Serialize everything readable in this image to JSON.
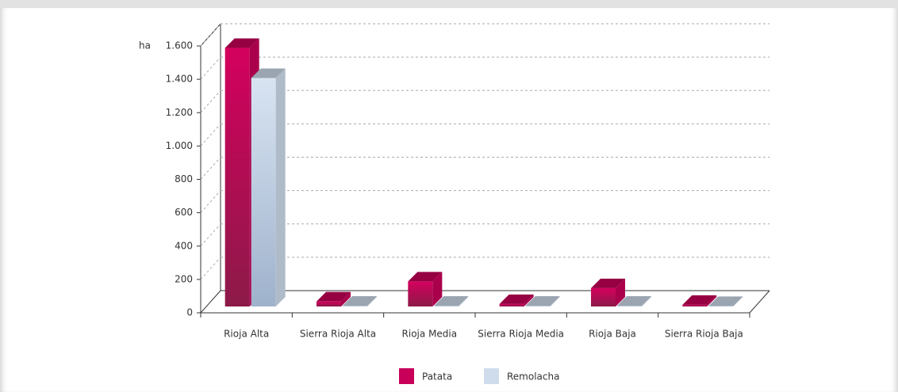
{
  "chart_data": {
    "type": "bar3d",
    "y_label": "ha",
    "categories": [
      "Rioja Alta",
      "Sierra Rioja Alta",
      "Rioja Media",
      "Sierra Rioja Media",
      "Rioja Baja",
      "Sierra Rioja Baja"
    ],
    "series": [
      {
        "name": "Patata",
        "color": "#c8005a",
        "values": [
          1550,
          30,
          150,
          15,
          110,
          10
        ]
      },
      {
        "name": "Remolacha",
        "color": "#cfdcec",
        "values": [
          1370,
          5,
          5,
          5,
          5,
          3
        ]
      }
    ],
    "ylim": [
      0,
      1600
    ],
    "yticks": [
      0,
      200,
      400,
      600,
      800,
      {
        "value": 1000,
        "label": "1.000"
      },
      {
        "value": 1200,
        "label": "1.200"
      },
      {
        "value": 1400,
        "label": "1.400"
      },
      {
        "value": 1600,
        "label": "1.600"
      }
    ],
    "grid": true
  }
}
